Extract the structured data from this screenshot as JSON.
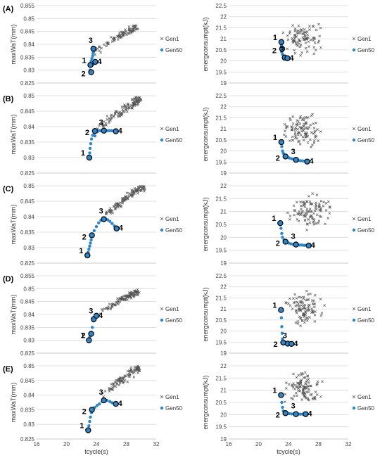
{
  "rows": [
    {
      "label": "(A)",
      "left": {
        "type": "scatter",
        "ylabel": "maxWaT(mm)",
        "xlabel": "",
        "xlim": [
          16,
          32
        ],
        "xticks": [],
        "ylim": [
          0.825,
          0.855
        ],
        "yticks": [
          "0.825",
          "0.83",
          "0.835",
          "0.84",
          "0.845",
          "0.85",
          "0.855"
        ],
        "legend": [
          "Gen1",
          "Gen50"
        ],
        "gen1_trend": {
          "x0": 23.4,
          "x1": 29.5,
          "y0": 0.8355,
          "y1": 0.8468,
          "spread": 0.0018,
          "n": 90
        },
        "gen50": [
          [
            23.2,
            0.829
          ],
          [
            23.15,
            0.83
          ],
          [
            23.2,
            0.8315
          ],
          [
            23.25,
            0.8325
          ],
          [
            23.3,
            0.8335
          ],
          [
            23.4,
            0.8345
          ],
          [
            23.5,
            0.8355
          ],
          [
            23.55,
            0.8365
          ],
          [
            23.6,
            0.8372
          ],
          [
            23.7,
            0.8378
          ],
          [
            23.65,
            0.8325
          ],
          [
            23.8,
            0.833
          ],
          [
            23.9,
            0.8332
          ],
          [
            23.5,
            0.832
          ],
          [
            23.6,
            0.8383
          ]
        ],
        "points": [
          {
            "label": "1",
            "x": 23.2,
            "y": 0.832
          },
          {
            "label": "2",
            "x": 23.3,
            "y": 0.8292
          },
          {
            "label": "3",
            "x": 23.6,
            "y": 0.8383
          },
          {
            "label": "4",
            "x": 23.85,
            "y": 0.8332
          }
        ]
      },
      "right": {
        "type": "scatter",
        "ylabel": "energconsumpt(kJ)",
        "xlabel": "",
        "xlim": [
          16,
          32
        ],
        "xticks": [],
        "ylim": [
          19,
          22.5
        ],
        "yticks": [
          "19",
          "19.5",
          "20",
          "20.5",
          "21",
          "21.5",
          "22",
          "22.5"
        ],
        "legend": [
          "Gen1",
          "Gen50"
        ],
        "gen1_cloud": {
          "cx": 25.8,
          "cy": 21.1,
          "rx": 3.3,
          "ry": 0.9,
          "n": 90
        },
        "gen50": [
          [
            23.05,
            20.85
          ],
          [
            23.05,
            20.7
          ],
          [
            23.1,
            20.55
          ],
          [
            23.1,
            20.4
          ],
          [
            23.2,
            20.3
          ],
          [
            23.3,
            20.25
          ],
          [
            23.4,
            20.2
          ],
          [
            23.6,
            20.15
          ],
          [
            23.8,
            20.12
          ]
        ],
        "points": [
          {
            "label": "1",
            "x": 23.05,
            "y": 20.85
          },
          {
            "label": "2",
            "x": 23.15,
            "y": 20.55
          },
          {
            "label": "3",
            "x": 23.5,
            "y": 20.15
          },
          {
            "label": "4",
            "x": 23.85,
            "y": 20.12
          }
        ]
      }
    },
    {
      "label": "(B)",
      "left": {
        "type": "scatter",
        "ylabel": "maxWaT(mm)",
        "xlabel": "",
        "xlim": [
          16,
          32
        ],
        "xticks": [],
        "ylim": [
          0.825,
          0.85
        ],
        "yticks": [
          "0.825",
          "0.83",
          "0.835",
          "0.84",
          "0.845",
          "0.85"
        ],
        "legend": [
          "Gen1",
          "Gen50"
        ],
        "gen1_trend": {
          "x0": 23.5,
          "x1": 30.0,
          "y0": 0.8375,
          "y1": 0.849,
          "spread": 0.002,
          "n": 110
        },
        "gen50": [
          [
            23.05,
            0.83
          ],
          [
            23.1,
            0.8315
          ],
          [
            23.15,
            0.833
          ],
          [
            23.25,
            0.8345
          ],
          [
            23.35,
            0.836
          ],
          [
            23.5,
            0.8372
          ],
          [
            23.7,
            0.838
          ],
          [
            23.9,
            0.8384
          ],
          [
            24.2,
            0.8386
          ],
          [
            24.5,
            0.8387
          ],
          [
            24.8,
            0.8387
          ],
          [
            25.1,
            0.8387
          ],
          [
            25.4,
            0.8387
          ],
          [
            25.7,
            0.8387
          ],
          [
            26.0,
            0.8387
          ],
          [
            26.3,
            0.8386
          ],
          [
            26.6,
            0.8385
          ],
          [
            23.8,
            0.837
          ],
          [
            24.1,
            0.8383
          ]
        ],
        "points": [
          {
            "label": "1",
            "x": 23.05,
            "y": 0.83
          },
          {
            "label": "2",
            "x": 23.8,
            "y": 0.8386
          },
          {
            "label": "3",
            "x": 25.0,
            "y": 0.8387
          },
          {
            "label": "4",
            "x": 26.6,
            "y": 0.8385
          }
        ]
      },
      "right": {
        "type": "scatter",
        "ylabel": "energconsumpt(kJ)",
        "xlabel": "",
        "xlim": [
          16,
          32
        ],
        "xticks": [],
        "ylim": [
          19,
          22.5
        ],
        "yticks": [
          "19",
          "19.5",
          "20",
          "20.5",
          "21",
          "21.5",
          "22",
          "22.5"
        ],
        "legend": [
          "Gen1",
          "Gen50"
        ],
        "gen1_cloud": {
          "cx": 25.7,
          "cy": 20.9,
          "rx": 3.6,
          "ry": 1.0,
          "n": 100
        },
        "gen50": [
          [
            23.05,
            20.4
          ],
          [
            23.1,
            20.2
          ],
          [
            23.2,
            20.0
          ],
          [
            23.3,
            19.9
          ],
          [
            23.5,
            19.8
          ],
          [
            23.8,
            19.72
          ],
          [
            24.1,
            19.68
          ],
          [
            24.4,
            19.65
          ],
          [
            24.7,
            19.62
          ],
          [
            25.0,
            19.6
          ],
          [
            25.3,
            19.58
          ],
          [
            25.6,
            19.56
          ],
          [
            25.9,
            19.55
          ],
          [
            26.2,
            19.53
          ],
          [
            26.5,
            19.52
          ]
        ],
        "points": [
          {
            "label": "1",
            "x": 23.05,
            "y": 20.4
          },
          {
            "label": "2",
            "x": 23.6,
            "y": 19.75
          },
          {
            "label": "3",
            "x": 25.0,
            "y": 19.6
          },
          {
            "label": "4",
            "x": 26.5,
            "y": 19.52
          }
        ]
      }
    },
    {
      "label": "(C)",
      "left": {
        "type": "scatter",
        "ylabel": "maxWaT(mm)",
        "xlabel": "",
        "xlim": [
          16,
          32
        ],
        "xticks": [],
        "ylim": [
          0.825,
          0.85
        ],
        "yticks": [
          "0.825",
          "0.83",
          "0.835",
          "0.84",
          "0.845",
          "0.85"
        ],
        "legend": [
          "Gen1",
          "Gen50"
        ],
        "gen1_trend": {
          "x0": 24.5,
          "x1": 30.5,
          "y0": 0.8385,
          "y1": 0.85,
          "spread": 0.0018,
          "n": 110
        },
        "gen50": [
          [
            22.8,
            0.8275
          ],
          [
            22.9,
            0.8285
          ],
          [
            23.0,
            0.8295
          ],
          [
            23.1,
            0.8305
          ],
          [
            23.2,
            0.8315
          ],
          [
            23.3,
            0.8325
          ],
          [
            23.45,
            0.834
          ],
          [
            23.7,
            0.8355
          ],
          [
            24.0,
            0.8368
          ],
          [
            24.3,
            0.838
          ],
          [
            24.6,
            0.8388
          ],
          [
            24.9,
            0.8392
          ],
          [
            25.2,
            0.8393
          ],
          [
            25.5,
            0.839
          ],
          [
            25.8,
            0.8385
          ],
          [
            26.1,
            0.8378
          ],
          [
            26.4,
            0.837
          ],
          [
            26.7,
            0.8362
          ]
        ],
        "points": [
          {
            "label": "1",
            "x": 22.8,
            "y": 0.8275
          },
          {
            "label": "2",
            "x": 23.4,
            "y": 0.834
          },
          {
            "label": "3",
            "x": 25.0,
            "y": 0.8392
          },
          {
            "label": "4",
            "x": 26.7,
            "y": 0.8362
          }
        ]
      },
      "right": {
        "type": "scatter",
        "ylabel": "energconsumpt(kJ)",
        "xlabel": "",
        "xlim": [
          16,
          32
        ],
        "xticks": [],
        "ylim": [
          19,
          22
        ],
        "yticks": [
          "19",
          "19.5",
          "20",
          "20.5",
          "21",
          "21.5",
          "22"
        ],
        "legend": [
          "Gen1",
          "Gen50"
        ],
        "gen1_cloud": {
          "cx": 27.0,
          "cy": 21.0,
          "rx": 3.8,
          "ry": 0.8,
          "n": 100
        },
        "gen50": [
          [
            22.9,
            20.55
          ],
          [
            23.0,
            20.35
          ],
          [
            23.1,
            20.15
          ],
          [
            23.2,
            20.0
          ],
          [
            23.4,
            19.9
          ],
          [
            23.7,
            19.82
          ],
          [
            24.0,
            19.78
          ],
          [
            24.3,
            19.75
          ],
          [
            24.6,
            19.73
          ],
          [
            24.9,
            19.72
          ],
          [
            25.2,
            19.71
          ],
          [
            25.5,
            19.7
          ],
          [
            25.8,
            19.7
          ],
          [
            26.1,
            19.69
          ],
          [
            26.4,
            19.69
          ],
          [
            26.7,
            19.68
          ]
        ],
        "points": [
          {
            "label": "1",
            "x": 22.9,
            "y": 20.55
          },
          {
            "label": "2",
            "x": 23.6,
            "y": 19.83
          },
          {
            "label": "3",
            "x": 25.0,
            "y": 19.72
          },
          {
            "label": "4",
            "x": 26.7,
            "y": 19.68
          }
        ]
      }
    },
    {
      "label": "(D)",
      "left": {
        "type": "scatter",
        "ylabel": "maxWaT(mm)",
        "xlabel": "",
        "xlim": [
          16,
          32
        ],
        "xticks": [],
        "ylim": [
          0.825,
          0.855
        ],
        "yticks": [
          "0.825",
          "0.83",
          "0.835",
          "0.84",
          "0.845",
          "0.85",
          "0.855"
        ],
        "legend": [
          "Gen1",
          "Gen50"
        ],
        "gen1_trend": {
          "x0": 24.0,
          "x1": 29.5,
          "y0": 0.839,
          "y1": 0.849,
          "spread": 0.0018,
          "n": 100
        },
        "gen50": [
          [
            23.0,
            0.83
          ],
          [
            23.1,
            0.8312
          ],
          [
            23.2,
            0.8322
          ],
          [
            23.3,
            0.8328
          ],
          [
            23.45,
            0.835
          ],
          [
            23.6,
            0.8375
          ],
          [
            23.7,
            0.8385
          ],
          [
            23.9,
            0.839
          ],
          [
            24.0,
            0.8394
          ]
        ],
        "points": [
          {
            "label": "1",
            "x": 23.0,
            "y": 0.83
          },
          {
            "label": "2",
            "x": 23.3,
            "y": 0.8325
          },
          {
            "label": "3",
            "x": 23.65,
            "y": 0.8382
          },
          {
            "label": "4",
            "x": 24.0,
            "y": 0.8395
          }
        ]
      },
      "right": {
        "type": "scatter",
        "ylabel": "energconsumpt(kJ)",
        "xlabel": "",
        "xlim": [
          16,
          32
        ],
        "xticks": [],
        "ylim": [
          19,
          22.5
        ],
        "yticks": [
          "19",
          "19.5",
          "20",
          "20.5",
          "21",
          "21.5",
          "22",
          "22.5"
        ],
        "legend": [
          "Gen1",
          "Gen50"
        ],
        "gen1_cloud": {
          "cx": 26.2,
          "cy": 21.0,
          "rx": 3.3,
          "ry": 1.1,
          "n": 100
        },
        "gen50": [
          [
            23.0,
            20.95
          ],
          [
            23.05,
            20.6
          ],
          [
            23.1,
            20.2
          ],
          [
            23.15,
            19.9
          ],
          [
            23.2,
            19.65
          ],
          [
            23.3,
            19.5
          ],
          [
            23.5,
            19.45
          ],
          [
            23.7,
            19.43
          ],
          [
            24.0,
            19.42
          ],
          [
            24.2,
            19.42
          ]
        ],
        "points": [
          {
            "label": "1",
            "x": 23.0,
            "y": 20.95
          },
          {
            "label": "2",
            "x": 23.3,
            "y": 19.48
          },
          {
            "label": "3",
            "x": 23.9,
            "y": 19.43
          },
          {
            "label": "4",
            "x": 24.4,
            "y": 19.42
          }
        ]
      }
    },
    {
      "label": "(E)",
      "left": {
        "type": "scatter",
        "ylabel": "maxWaT(mm)",
        "xlabel": "tcycle(s)",
        "xlim": [
          16,
          32
        ],
        "xticks": [
          "16",
          "20",
          "24",
          "28",
          "32"
        ],
        "ylim": [
          0.825,
          0.85
        ],
        "yticks": [
          "0.825",
          "0.83",
          "0.835",
          "0.84",
          "0.845",
          "0.85"
        ],
        "legend": [
          "Gen1",
          "Gen50"
        ],
        "gen1_trend": {
          "x0": 24.5,
          "x1": 29.8,
          "y0": 0.8385,
          "y1": 0.8495,
          "spread": 0.002,
          "n": 100
        },
        "gen50": [
          [
            22.9,
            0.828
          ],
          [
            23.0,
            0.8295
          ],
          [
            23.1,
            0.831
          ],
          [
            23.2,
            0.8325
          ],
          [
            23.35,
            0.834
          ],
          [
            23.5,
            0.835
          ],
          [
            23.8,
            0.8358
          ],
          [
            24.1,
            0.8365
          ],
          [
            24.4,
            0.837
          ],
          [
            24.8,
            0.8378
          ],
          [
            25.1,
            0.8383
          ],
          [
            25.4,
            0.8382
          ],
          [
            25.8,
            0.8378
          ],
          [
            26.1,
            0.8374
          ],
          [
            26.4,
            0.8371
          ],
          [
            26.7,
            0.8369
          ]
        ],
        "points": [
          {
            "label": "1",
            "x": 22.9,
            "y": 0.828
          },
          {
            "label": "2",
            "x": 23.4,
            "y": 0.835
          },
          {
            "label": "3",
            "x": 25.0,
            "y": 0.8382
          },
          {
            "label": "4",
            "x": 26.6,
            "y": 0.837
          }
        ]
      },
      "right": {
        "type": "scatter",
        "ylabel": "energconsumpt(kJ)",
        "xlabel": "tcycle(s)",
        "xlim": [
          16,
          32
        ],
        "xticks": [
          "16",
          "20",
          "24",
          "28",
          "32"
        ],
        "ylim": [
          19,
          22
        ],
        "yticks": [
          "19",
          "19.5",
          "20",
          "20.5",
          "21",
          "21.5",
          "22"
        ],
        "legend": [
          "Gen1",
          "Gen50"
        ],
        "gen1_cloud": {
          "cx": 26.0,
          "cy": 21.1,
          "rx": 3.2,
          "ry": 0.8,
          "n": 100
        },
        "gen50": [
          [
            23.0,
            20.8
          ],
          [
            23.1,
            20.5
          ],
          [
            23.2,
            20.3
          ],
          [
            23.3,
            20.15
          ],
          [
            23.5,
            20.08
          ],
          [
            23.8,
            20.05
          ],
          [
            24.1,
            20.04
          ],
          [
            24.4,
            20.03
          ],
          [
            24.7,
            20.03
          ],
          [
            25.0,
            20.02
          ],
          [
            25.3,
            20.02
          ],
          [
            25.6,
            20.02
          ],
          [
            25.9,
            20.02
          ],
          [
            26.2,
            20.02
          ],
          [
            26.4,
            20.02
          ]
        ],
        "points": [
          {
            "label": "1",
            "x": 23.0,
            "y": 20.8
          },
          {
            "label": "2",
            "x": 23.6,
            "y": 20.06
          },
          {
            "label": "3",
            "x": 25.0,
            "y": 20.02
          },
          {
            "label": "4",
            "x": 26.3,
            "y": 20.02
          }
        ]
      }
    }
  ]
}
